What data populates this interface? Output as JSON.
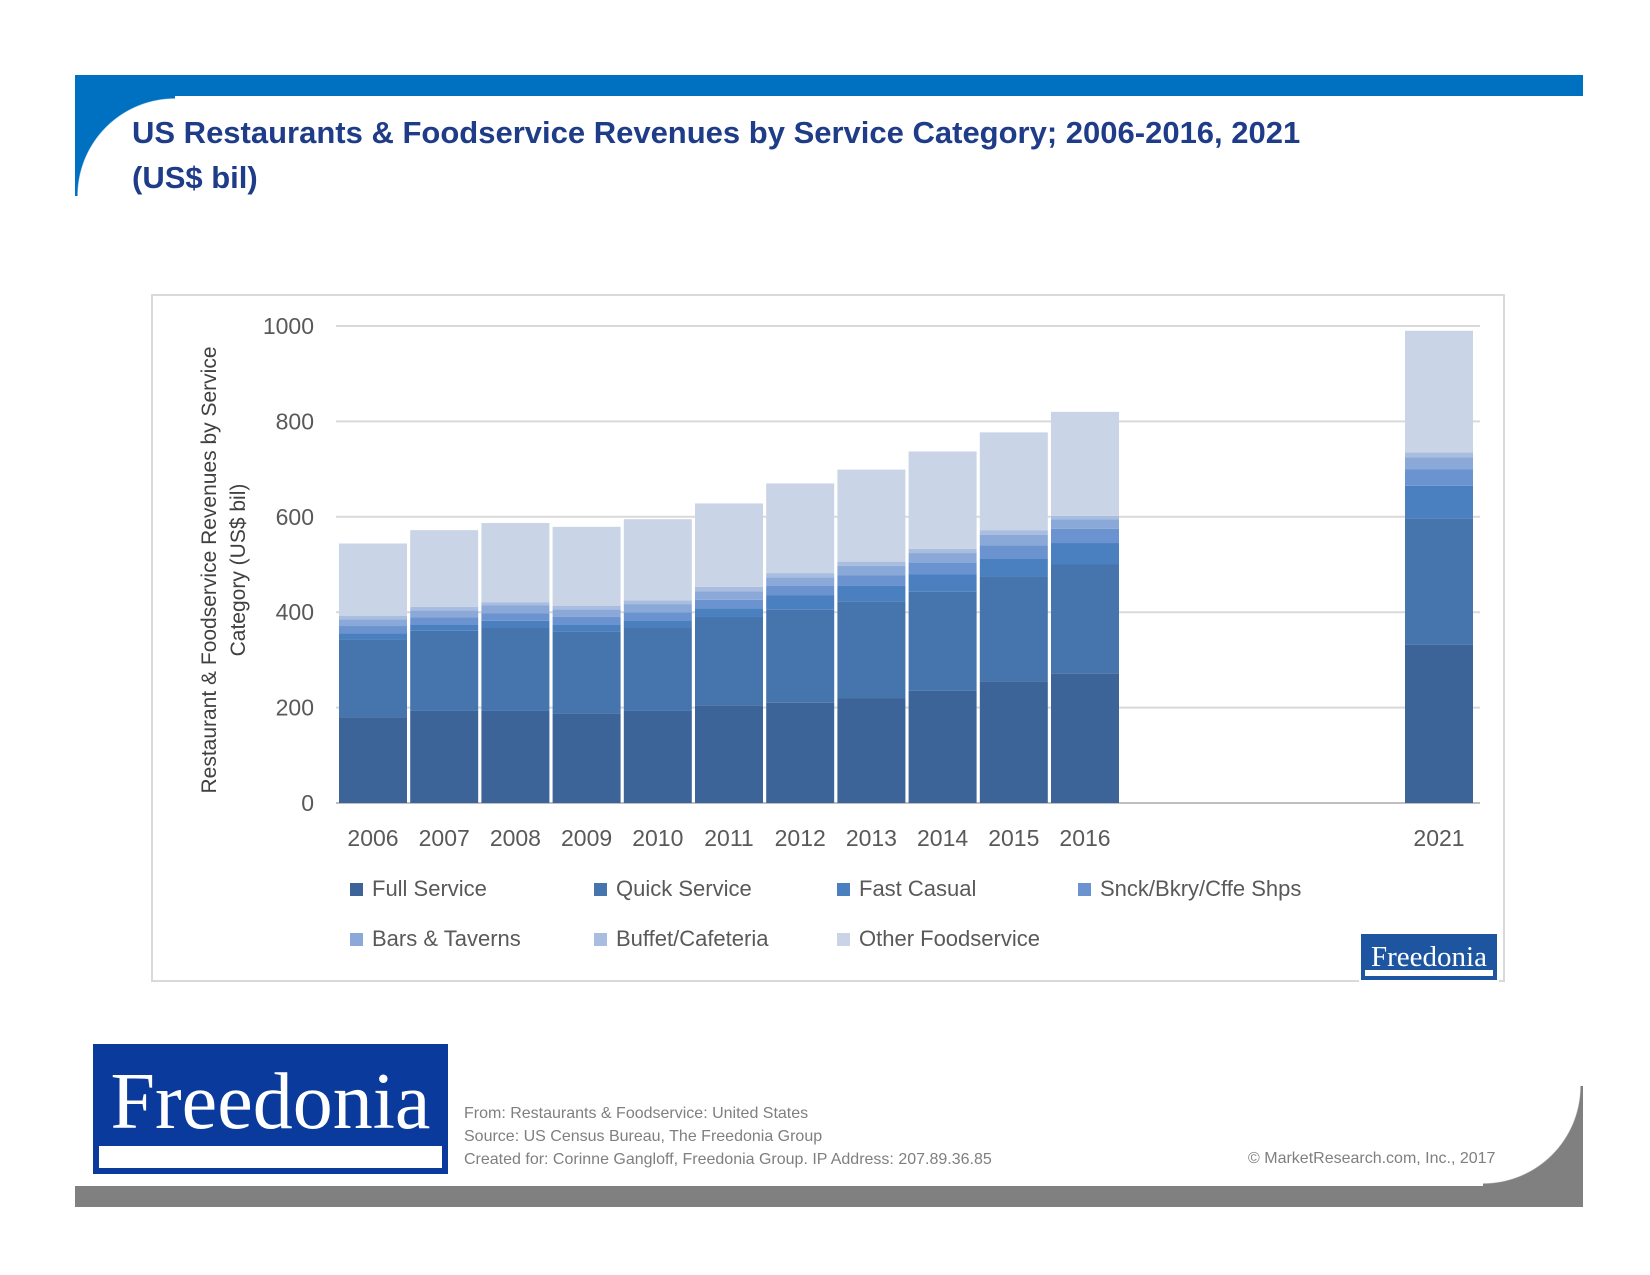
{
  "title": {
    "line1": "US Restaurants & Foodservice Revenues by Service Category; 2006-2016, 2021",
    "line2": "(US$ bil)"
  },
  "colors": {
    "accent_top": "#0070c0",
    "accent_bottom": "#808080",
    "title": "#1f3c88"
  },
  "chart_data": {
    "type": "bar",
    "stacked": true,
    "categories": [
      "2006",
      "2007",
      "2008",
      "2009",
      "2010",
      "2011",
      "2012",
      "2013",
      "2014",
      "2015",
      "2016",
      "2021"
    ],
    "ylabel": "Restaurant & Foodservice Revenues by Service Category (US$ bil)",
    "xlabel": "",
    "ylim": [
      0,
      1000
    ],
    "yticks": [
      0,
      200,
      400,
      600,
      800,
      1000
    ],
    "grid": true,
    "legend_position": "bottom",
    "series": [
      {
        "name": "Full Service",
        "color": "#3d6499",
        "values": [
          180,
          193,
          193,
          188,
          193,
          205,
          210,
          220,
          235,
          255,
          272,
          332
        ]
      },
      {
        "name": "Quick Service",
        "color": "#4675ad",
        "values": [
          163,
          168,
          175,
          172,
          175,
          185,
          195,
          203,
          208,
          220,
          228,
          265
        ]
      },
      {
        "name": "Fast Casual",
        "color": "#4a7fc0",
        "values": [
          13,
          13,
          14,
          14,
          15,
          18,
          30,
          32,
          36,
          38,
          45,
          68
        ]
      },
      {
        "name": "Snck/Bkry/Cffe Shps",
        "color": "#6a93cf",
        "values": [
          15,
          15,
          16,
          16,
          17,
          18,
          20,
          22,
          25,
          27,
          30,
          35
        ]
      },
      {
        "name": "Bars & Taverns",
        "color": "#8aa8d8",
        "values": [
          14,
          15,
          16,
          16,
          17,
          18,
          18,
          20,
          20,
          22,
          20,
          25
        ]
      },
      {
        "name": "Buffet/Cafeteria",
        "color": "#a8bde0",
        "values": [
          7,
          7,
          7,
          7,
          8,
          9,
          9,
          9,
          9,
          10,
          7,
          10
        ]
      },
      {
        "name": "Other Foodservice",
        "color": "#c9d4e7",
        "values": [
          152,
          161,
          166,
          166,
          170,
          175,
          188,
          193,
          204,
          205,
          218,
          255
        ]
      }
    ]
  },
  "brand": {
    "small_logo": "Freedonia",
    "big_logo": "Freedonia"
  },
  "footer": {
    "from": "From: Restaurants & Foodservice: United States",
    "source": "Source: US Census Bureau, The Freedonia Group",
    "created_for": "Created for: Corinne Gangloff, Freedonia Group. IP Address: 207.89.36.85",
    "copyright": "© MarketResearch.com, Inc., 2017"
  }
}
